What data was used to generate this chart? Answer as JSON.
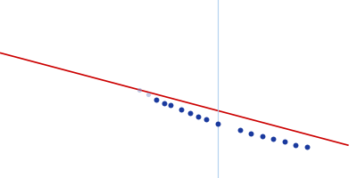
{
  "background_color": "#ffffff",
  "line_color": "#cc0000",
  "line_width": 1.2,
  "vline_color": "#aaccee",
  "vline_alpha": 0.9,
  "dot_color": "#1a3a9e",
  "dot_size": 18,
  "dot_alpha": 1.0,
  "faded_dot_color": "#8899cc",
  "faded_dot_size": 14,
  "faded_dot_alpha": 0.5,
  "x_data": [
    0.01,
    0.013,
    0.016,
    0.019,
    0.021,
    0.025,
    0.028,
    0.031,
    0.034,
    0.038,
    0.046,
    0.05,
    0.054,
    0.058,
    0.062,
    0.066,
    0.07
  ],
  "y_data": [
    3.82,
    3.795,
    3.768,
    3.75,
    3.738,
    3.715,
    3.698,
    3.68,
    3.663,
    3.642,
    3.606,
    3.588,
    3.572,
    3.558,
    3.543,
    3.528,
    3.515
  ],
  "faded_indices": [
    0,
    1
  ],
  "line_x_start": -0.04,
  "line_x_end": 0.085,
  "line_slope": -3.95,
  "line_intercept": 3.86,
  "vline_x": 0.038,
  "xlim": [
    -0.04,
    0.088
  ],
  "ylim": [
    3.35,
    4.3
  ]
}
